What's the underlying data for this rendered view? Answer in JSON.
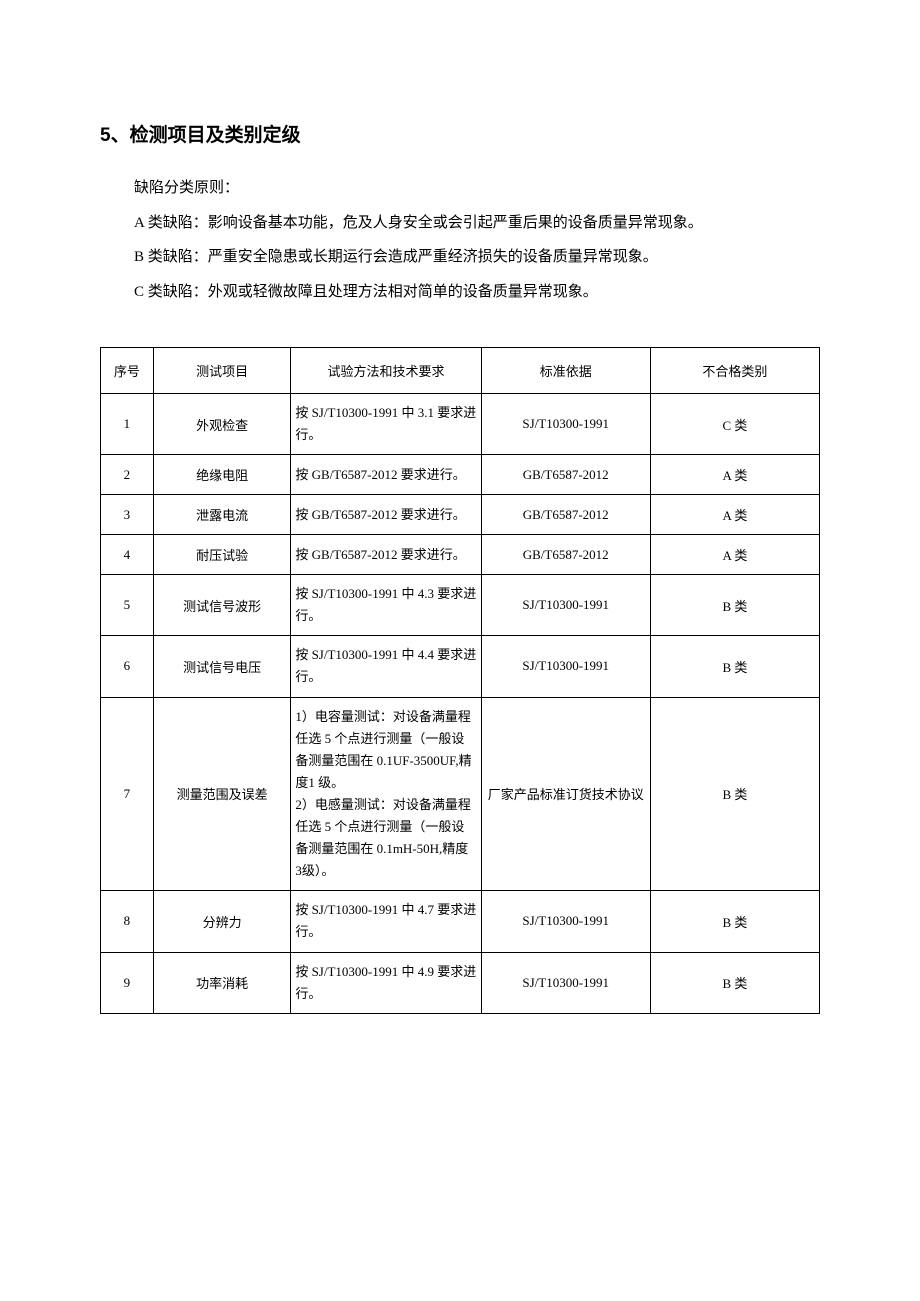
{
  "section": {
    "title": "5、检测项目及类别定级",
    "intro_label": "缺陷分类原则：",
    "defect_a": "A 类缺陷：影响设备基本功能，危及人身安全或会引起严重后果的设备质量异常现象。",
    "defect_b": "B 类缺陷：严重安全隐患或长期运行会造成严重经济损失的设备质量异常现象。",
    "defect_c": "C 类缺陷：外观或轻微故障且处理方法相对简单的设备质量异常现象。"
  },
  "table": {
    "headers": {
      "seq": "序号",
      "item": "测试项目",
      "method": "试验方法和技术要求",
      "standard": "标准依据",
      "category": "不合格类别"
    },
    "rows": [
      {
        "seq": "1",
        "item": "外观检查",
        "method": "按 SJ/T10300-1991 中 3.1 要求进行。",
        "standard": "SJ/T10300-1991",
        "category": "C 类"
      },
      {
        "seq": "2",
        "item": "绝缘电阻",
        "method": "按 GB/T6587-2012 要求进行。",
        "standard": "GB/T6587-2012",
        "category": "A 类"
      },
      {
        "seq": "3",
        "item": "泄露电流",
        "method": "按 GB/T6587-2012 要求进行。",
        "standard": "GB/T6587-2012",
        "category": "A 类"
      },
      {
        "seq": "4",
        "item": "耐压试验",
        "method": "按 GB/T6587-2012 要求进行。",
        "standard": "GB/T6587-2012",
        "category": "A 类"
      },
      {
        "seq": "5",
        "item": "测试信号波形",
        "method": "按 SJ/T10300-1991 中 4.3 要求进行。",
        "standard": "SJ/T10300-1991",
        "category": "B 类"
      },
      {
        "seq": "6",
        "item": "测试信号电压",
        "method": "按 SJ/T10300-1991 中 4.4 要求进行。",
        "standard": "SJ/T10300-1991",
        "category": "B 类"
      },
      {
        "seq": "7",
        "item": "测量范围及误差",
        "method": "1）电容量测试：对设备满量程任选 5 个点进行测量（一般设备测量范围在 0.1UF-3500UF,精度1 级。\n2）电感量测试：对设备满量程任选 5 个点进行测量（一般设备测量范围在 0.1mH-50H,精度 3级）。",
        "standard": "厂家产品标准订货技术协议",
        "category": "B 类"
      },
      {
        "seq": "8",
        "item": "分辨力",
        "method": "按 SJ/T10300-1991 中 4.7 要求进行。",
        "standard": "SJ/T10300-1991",
        "category": "B 类"
      },
      {
        "seq": "9",
        "item": "功率消耗",
        "method": "按 SJ/T10300-1991 中 4.9 要求进行。",
        "standard": "SJ/T10300-1991",
        "category": "B 类"
      }
    ]
  },
  "styles": {
    "background_color": "#ffffff",
    "text_color": "#000000",
    "border_color": "#000000",
    "title_fontsize": 19,
    "body_fontsize": 15,
    "table_fontsize": 13,
    "column_widths": {
      "seq": 50,
      "item": 130,
      "method": 180,
      "standard": 160,
      "category": 160
    }
  }
}
